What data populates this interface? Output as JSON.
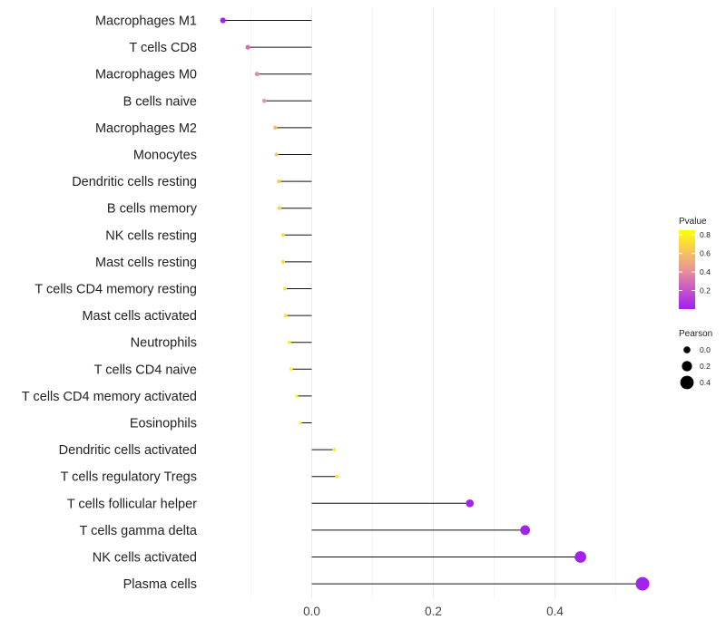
{
  "chart_data": {
    "type": "lollipop",
    "title": "",
    "xlabel": "",
    "ylabel": "",
    "xlim": [
      -0.2,
      0.55
    ],
    "x_ticks": [
      0.0,
      0.2,
      0.4
    ],
    "x_tick_labels": [
      "0.0",
      "0.2",
      "0.4"
    ],
    "grid": true,
    "categories": [
      "Macrophages M1",
      "T cells CD8",
      "Macrophages M0",
      "B cells naive",
      "Macrophages M2",
      "Monocytes",
      "Dendritic cells resting",
      "B cells memory",
      "NK cells resting",
      "Mast cells resting",
      "T cells CD4 memory resting",
      "Mast cells activated",
      "Neutrophils",
      "T cells CD4 naive",
      "T cells CD4 memory activated",
      "Eosinophils",
      "Dendritic cells activated",
      "T cells regulatory  Tregs ",
      "T cells follicular helper",
      "T cells gamma delta",
      "NK cells activated",
      "Plasma cells"
    ],
    "values": [
      -0.146,
      -0.105,
      -0.09,
      -0.078,
      -0.06,
      -0.058,
      -0.054,
      -0.053,
      -0.047,
      -0.047,
      -0.044,
      -0.043,
      -0.037,
      -0.034,
      -0.025,
      -0.019,
      0.037,
      0.041,
      0.26,
      0.351,
      0.442,
      0.544
    ],
    "pvalues": [
      0.01,
      0.3,
      0.4,
      0.45,
      0.58,
      0.62,
      0.65,
      0.66,
      0.71,
      0.71,
      0.74,
      0.75,
      0.8,
      0.81,
      0.86,
      0.89,
      0.78,
      0.75,
      0.01,
      0.01,
      0.01,
      0.01
    ],
    "legend_position": "right",
    "color_legend": {
      "title": "Pvalue",
      "ticks": [
        0.2,
        0.4,
        0.6,
        0.8
      ],
      "tick_labels": [
        "0.2",
        "0.4",
        "0.6",
        "0.8"
      ],
      "low_color": "#a020f0",
      "high_color": "#ffff00",
      "range": [
        0.0,
        0.85
      ]
    },
    "size_legend": {
      "title": "Pearson",
      "values": [
        0.0,
        0.2,
        0.4
      ],
      "labels": [
        "0.0",
        "0.2",
        "0.4"
      ]
    }
  }
}
